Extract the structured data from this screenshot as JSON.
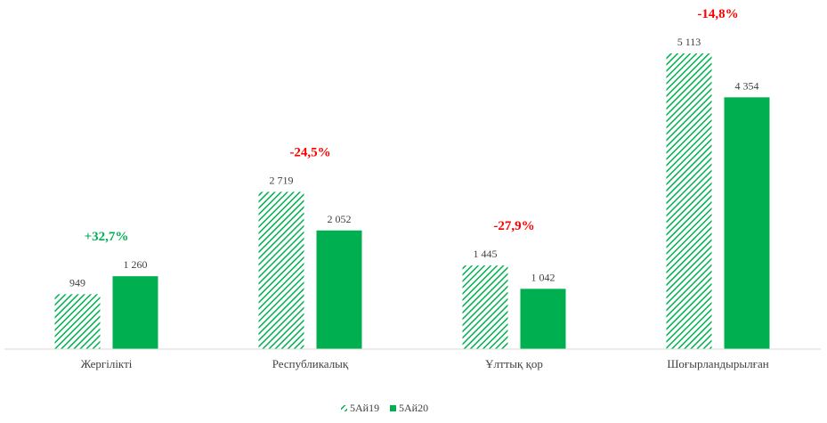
{
  "chart_data": {
    "type": "bar",
    "categories": [
      "Жергілікті",
      "Республикалық",
      "Ұлттық қор",
      "Шоғырландырылған"
    ],
    "series": [
      {
        "name": "5Ай19",
        "values": [
          949,
          2719,
          1445,
          5113
        ],
        "labels": [
          "949",
          "2 719",
          "1 445",
          "5 113"
        ],
        "pattern": "hatched",
        "color": "#00b050"
      },
      {
        "name": "5Ай20",
        "values": [
          1260,
          2052,
          1042,
          4354
        ],
        "labels": [
          "1 260",
          "2 052",
          "1 042",
          "4 354"
        ],
        "pattern": "solid",
        "color": "#00b050"
      }
    ],
    "annotations": [
      {
        "text": "+32,7%",
        "color": "#00b050"
      },
      {
        "text": "-24,5%",
        "color": "#ff0000"
      },
      {
        "text": "-27,9%",
        "color": "#ff0000"
      },
      {
        "text": "-14,8%",
        "color": "#ff0000"
      }
    ],
    "ylim": [
      0,
      5113
    ],
    "grid": false,
    "legend_position": "bottom"
  }
}
